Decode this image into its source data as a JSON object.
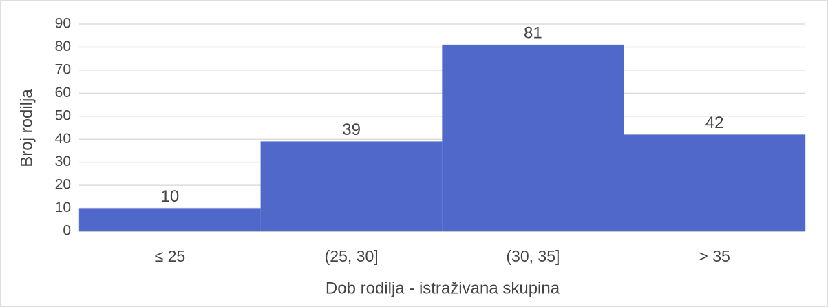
{
  "chart_data": {
    "type": "bar",
    "xlabel": "Dob rodilja - istraživana skupina",
    "ylabel": "Broj rodilja",
    "categories": [
      "≤ 25",
      "(25, 30]",
      "(30, 35]",
      "> 35"
    ],
    "values": [
      10,
      39,
      81,
      42
    ],
    "color": "#5068c9",
    "ylim": [
      0,
      90
    ],
    "yticks": [
      0,
      10,
      20,
      30,
      40,
      50,
      60,
      70,
      80,
      90
    ],
    "grid": true
  }
}
